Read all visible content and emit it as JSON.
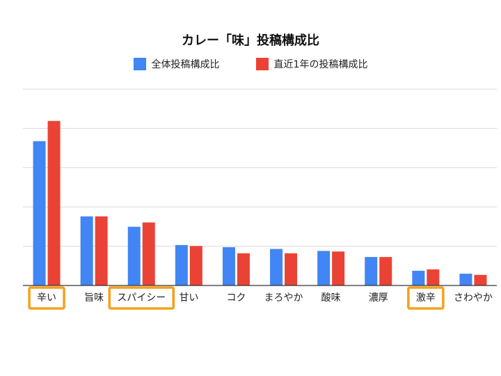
{
  "chart_data": {
    "type": "bar",
    "title": "カレー「味」投稿構成比",
    "xlabel": "",
    "ylabel": "",
    "ylim": [
      0,
      100
    ],
    "grid": true,
    "legend_position": "top",
    "categories": [
      "辛い",
      "旨味",
      "スパイシー",
      "甘い",
      "コク",
      "まろやか",
      "酸味",
      "濃厚",
      "激辛",
      "さわやか"
    ],
    "highlighted_categories": [
      "辛い",
      "スパイシー",
      "激辛"
    ],
    "series": [
      {
        "name": "全体投稿構成比",
        "color": "#4285f4",
        "values": [
          73.5,
          35.2,
          29.9,
          20.6,
          19.5,
          18.6,
          17.6,
          14.5,
          7.5,
          6.0
        ]
      },
      {
        "name": "直近1年の投稿構成比",
        "color": "#ea4335",
        "values": [
          83.8,
          35.2,
          32.1,
          20.1,
          16.4,
          16.4,
          17.3,
          14.5,
          8.2,
          5.4
        ]
      }
    ],
    "highlight_color": "#f5a01a"
  }
}
